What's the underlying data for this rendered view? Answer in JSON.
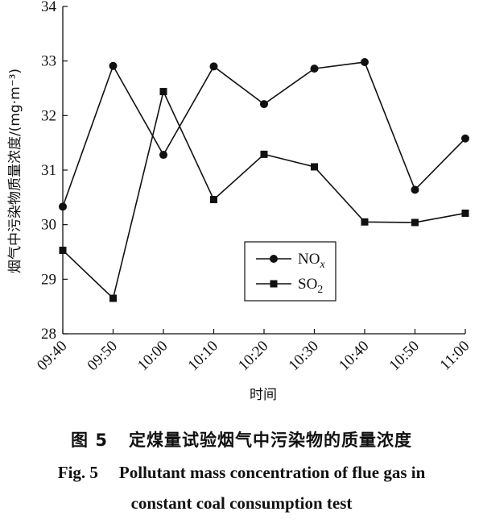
{
  "chart_data": {
    "type": "line",
    "categories": [
      "09:40",
      "09:50",
      "10:00",
      "10:10",
      "10:20",
      "10:30",
      "10:40",
      "10:50",
      "11:00"
    ],
    "series": [
      {
        "name": "NOx",
        "marker": "circle",
        "values": [
          30.33,
          32.91,
          31.28,
          32.9,
          32.21,
          32.86,
          32.98,
          30.64,
          31.58
        ]
      },
      {
        "name": "SO2",
        "marker": "square",
        "values": [
          29.53,
          28.65,
          32.44,
          30.46,
          31.29,
          31.06,
          30.05,
          30.04,
          30.21
        ]
      }
    ],
    "xlabel": "时间",
    "ylabel": "烟气中污染物质量浓度/(mg·m⁻³)",
    "ylim": [
      28,
      34
    ],
    "yticks": [
      28,
      29,
      30,
      31,
      32,
      33,
      34
    ],
    "grid": false,
    "legend_position": "inside-center-lower",
    "line_color": "#111111"
  },
  "caption": {
    "cn_label": "图 5",
    "cn_text": "定煤量试验烟气中污染物的质量浓度",
    "en_label": "Fig. 5",
    "en_line1": "Pollutant mass concentration of flue gas in",
    "en_line2": "constant coal consumption test"
  }
}
